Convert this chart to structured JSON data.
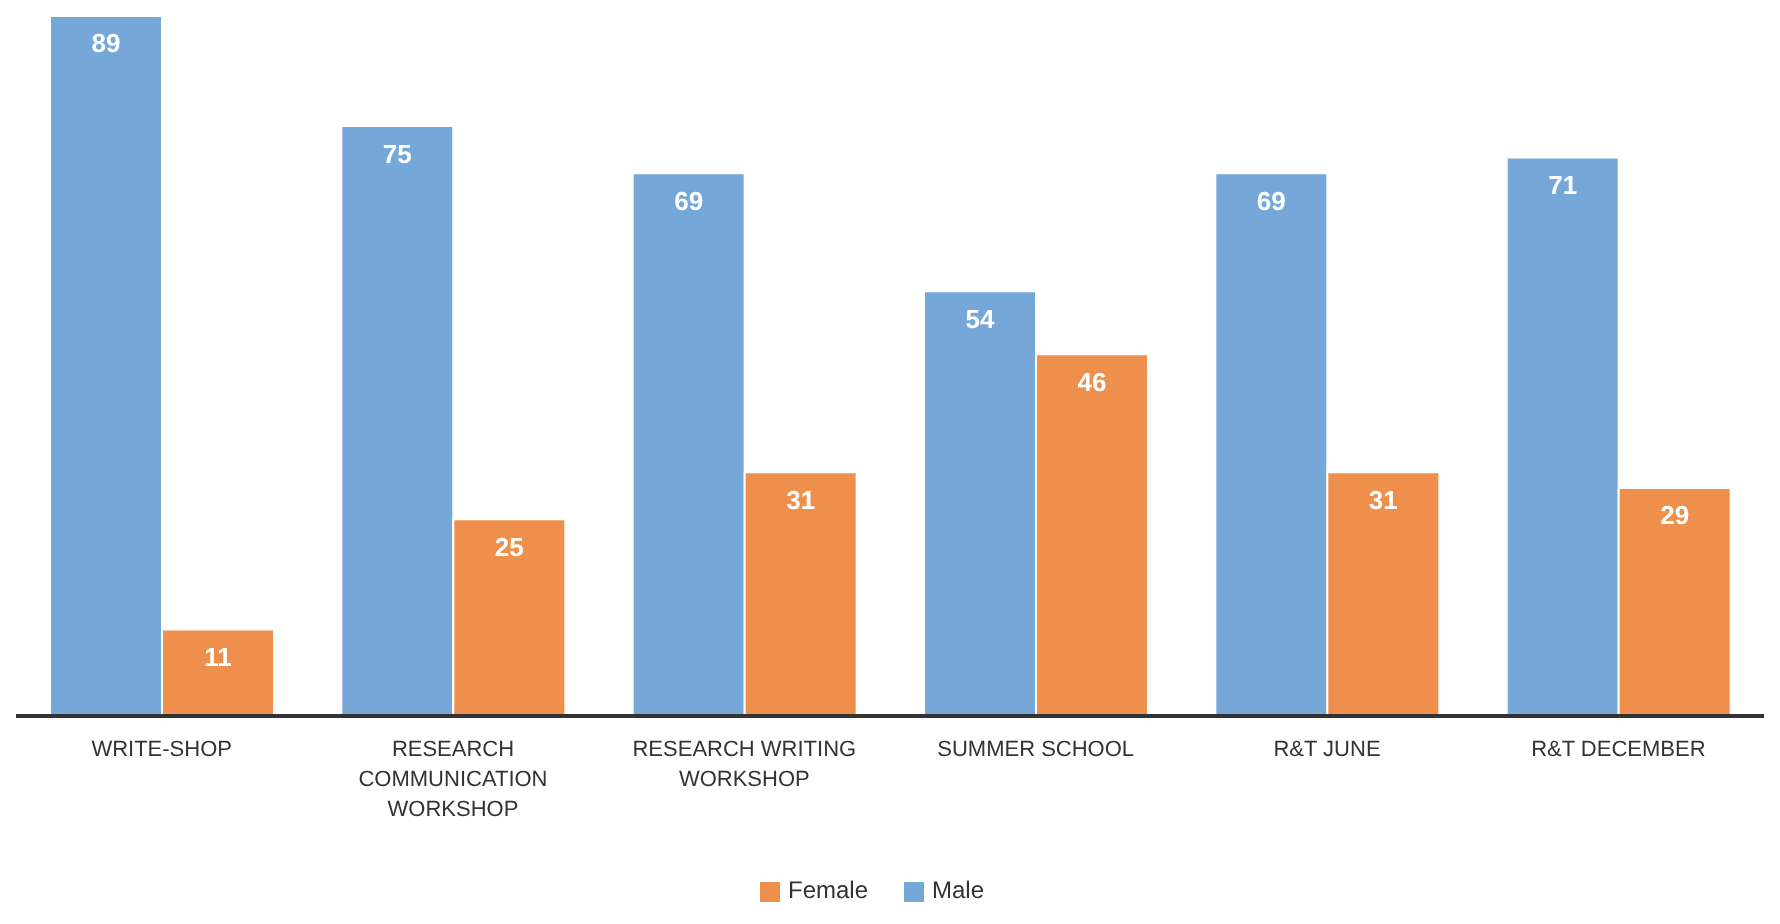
{
  "chart_data": {
    "type": "bar",
    "categories": [
      "WRITE-SHOP",
      "RESEARCH COMMUNICATION WORKSHOP",
      "RESEARCH WRITING WORKSHOP",
      "SUMMER SCHOOL",
      "R&T JUNE",
      "R&T DECEMBER"
    ],
    "series": [
      {
        "name": "Male",
        "color": "#75a7d8",
        "values": [
          89,
          75,
          69,
          54,
          69,
          71
        ]
      },
      {
        "name": "Female",
        "color": "#ee8f4c",
        "values": [
          11,
          25,
          31,
          46,
          31,
          29
        ]
      }
    ],
    "data_labels": true,
    "legend": "bottom",
    "grid": false
  }
}
